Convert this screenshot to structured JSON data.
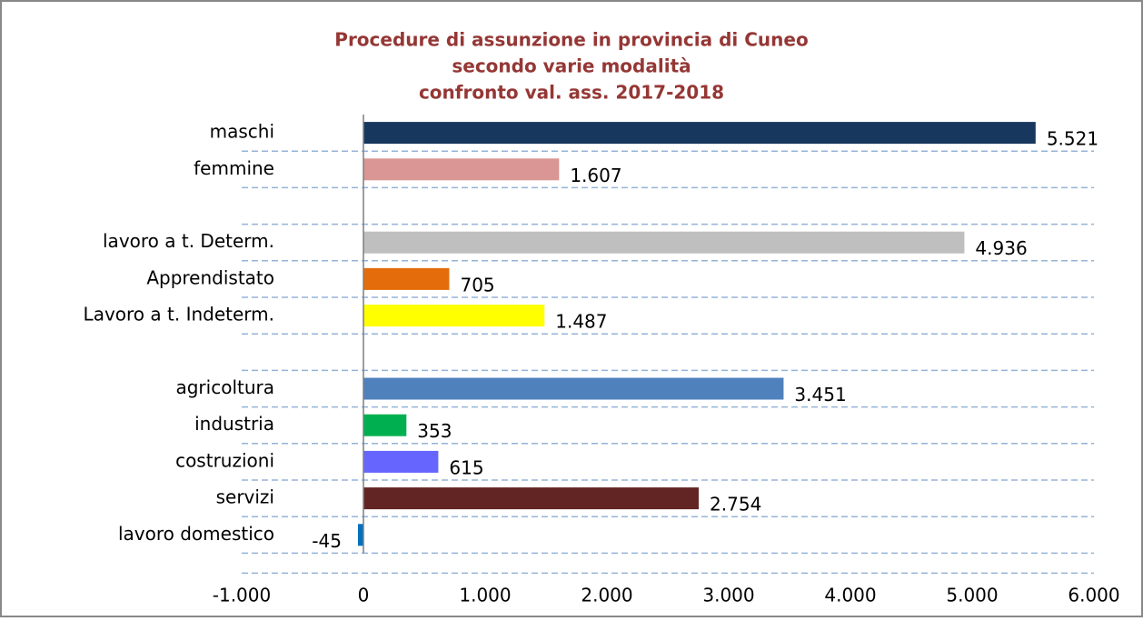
{
  "chart_data": {
    "type": "barh",
    "title": [
      "Procedure di assunzione in provincia di Cuneo",
      "secondo varie modalità",
      "confronto val. ass. 2017-2018"
    ],
    "categories": [
      "maschi",
      "femmine",
      null,
      "lavoro a t. Determ.",
      "Apprendistato",
      "Lavoro a t. Indeterm.",
      null,
      "agricoltura",
      "industria",
      "costruzioni",
      "servizi",
      "lavoro domestico"
    ],
    "values": [
      5521,
      1607,
      null,
      4936,
      705,
      1487,
      null,
      3451,
      353,
      615,
      2754,
      -45
    ],
    "value_labels": [
      "5.521",
      "1.607",
      null,
      "4.936",
      "705",
      "1.487",
      null,
      "3.451",
      "353",
      "615",
      "2.754",
      "-45"
    ],
    "colors": [
      "#17375e",
      "#d99694",
      null,
      "#bfbfbf",
      "#e46c0a",
      "#ffff00",
      null,
      "#4f81bd",
      "#00b050",
      "#6666ff",
      "#632523",
      "#0070c0"
    ],
    "xlim": [
      -1000,
      6000
    ],
    "xticks": [
      {
        "value": -1000,
        "label": "-1.000"
      },
      0,
      {
        "value": 1000,
        "label": "1.000"
      },
      {
        "value": 2000,
        "label": "2.000"
      },
      {
        "value": 3000,
        "label": "3.000"
      },
      {
        "value": 4000,
        "label": "4.000"
      },
      {
        "value": 5000,
        "label": "5.000"
      },
      {
        "value": 6000,
        "label": "6.000"
      }
    ]
  }
}
